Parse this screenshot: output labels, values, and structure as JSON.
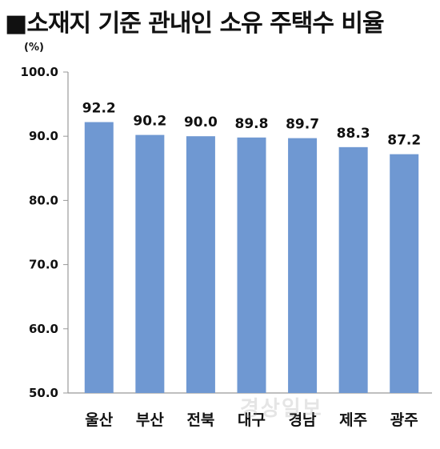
{
  "title": "■소재지 기준 관내인 소유 주택수 비율",
  "chart_data": {
    "type": "bar",
    "title": "■소재지 기준 관내인 소유 주택수 비율",
    "unit": "(%)",
    "categories": [
      "울산",
      "부산",
      "전북",
      "대구",
      "경남",
      "제주",
      "광주"
    ],
    "values": [
      92.2,
      90.2,
      90.0,
      89.8,
      89.7,
      88.3,
      87.2
    ],
    "value_labels": [
      "92.2",
      "90.2",
      "90.0",
      "89.8",
      "89.7",
      "88.3",
      "87.2"
    ],
    "yticks": [
      "100.0",
      "90.0",
      "80.0",
      "70.0",
      "60.0",
      "50.0"
    ],
    "ylim": [
      50,
      100
    ],
    "bar_color": "#6f98d2",
    "grid": false,
    "legend": "none"
  },
  "watermark": "경상일보"
}
